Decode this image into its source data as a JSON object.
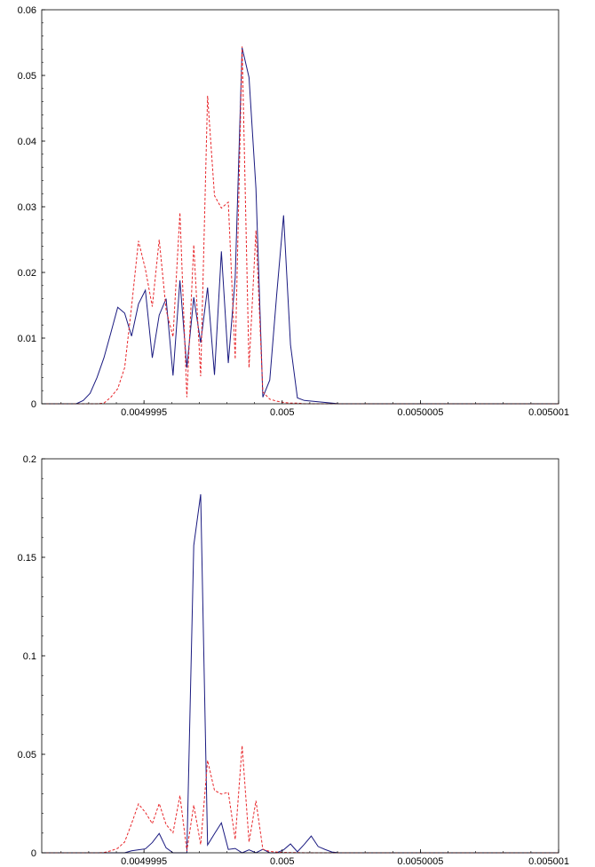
{
  "chart_data": [
    {
      "type": "line",
      "xlim": [
        0.00499913,
        0.005001
      ],
      "ylim": [
        0,
        0.06
      ],
      "xticks": [
        "0.0049995",
        "0.005",
        "0.0050005",
        "0.005001"
      ],
      "xtick_values": [
        0.0049995,
        0.005,
        0.0050005,
        0.005001
      ],
      "yticks": [
        "0",
        "0.01",
        "0.02",
        "0.03",
        "0.04",
        "0.05",
        "0.06"
      ],
      "ytick_values": [
        0,
        0.01,
        0.02,
        0.03,
        0.04,
        0.05,
        0.06
      ],
      "grid": false,
      "series": [
        {
          "color": "#1a1a80",
          "dash": "solid",
          "x": [
            0.00499913,
            0.004999155,
            0.00499918,
            0.004999205,
            0.00499923,
            0.004999255,
            0.00499928,
            0.004999305,
            0.00499933,
            0.004999355,
            0.00499938,
            0.004999405,
            0.00499943,
            0.004999455,
            0.00499948,
            0.004999505,
            0.00499953,
            0.004999555,
            0.00499958,
            0.004999605,
            0.00499963,
            0.004999655,
            0.00499968,
            0.004999705,
            0.00499973,
            0.004999755,
            0.00499978,
            0.004999805,
            0.00499983,
            0.004999855,
            0.00499988,
            0.004999905,
            0.00499993,
            0.004999955,
            0.00499998,
            0.005000005,
            0.00500003,
            0.005000055,
            0.00500008,
            0.005000105,
            0.00500013,
            0.005000155,
            0.00500018,
            0.005000205,
            0.00500023,
            0.005000255,
            0.00500028,
            0.005000305,
            0.00500033,
            0.005000355,
            0.00500038,
            0.005000405,
            0.00500043,
            0.005000455,
            0.00500048,
            0.005000505,
            0.00500053,
            0.005000555,
            0.00500058,
            0.005000605,
            0.00500063,
            0.005000655,
            0.00500068,
            0.005000705,
            0.00500073,
            0.005000755,
            0.00500078,
            0.005000805,
            0.00500083,
            0.005000855,
            0.00500088,
            0.005000905,
            0.00500093,
            0.005000955,
            0.00500098,
            0.005001
          ],
          "y": [
            0,
            0,
            0,
            0,
            0,
            0,
            0.0005,
            0.0016,
            0.004,
            0.007,
            0.0108,
            0.0147,
            0.0138,
            0.0103,
            0.0152,
            0.0173,
            0.007,
            0.0135,
            0.016,
            0.0043,
            0.0188,
            0.0055,
            0.0162,
            0.0093,
            0.0177,
            0.0044,
            0.0232,
            0.0062,
            0.0192,
            0.0542,
            0.0497,
            0.0328,
            0.001,
            0.0036,
            0.0166,
            0.0287,
            0.009,
            0.0009,
            0.0005,
            0.0004,
            0.0003,
            0.0002,
            0.0001,
            0,
            0,
            0,
            0,
            0,
            0,
            0,
            0,
            0,
            0,
            0,
            0,
            0,
            0,
            0,
            0,
            0,
            0,
            0,
            0,
            0,
            0,
            0,
            0,
            0,
            0,
            0,
            0,
            0,
            0,
            0,
            0,
            0
          ]
        },
        {
          "color": "#e8262a",
          "dash": "dashed",
          "x": [
            0.00499913,
            0.004999155,
            0.00499918,
            0.004999205,
            0.00499923,
            0.004999255,
            0.00499928,
            0.004999305,
            0.00499933,
            0.004999355,
            0.00499938,
            0.004999405,
            0.00499943,
            0.004999455,
            0.00499948,
            0.004999505,
            0.00499953,
            0.004999555,
            0.00499958,
            0.004999605,
            0.00499963,
            0.004999655,
            0.00499968,
            0.004999705,
            0.00499973,
            0.004999755,
            0.00499978,
            0.004999805,
            0.00499983,
            0.004999855,
            0.00499988,
            0.004999905,
            0.00499993,
            0.004999955,
            0.00499998,
            0.005000005,
            0.00500003,
            0.005000055,
            0.00500008,
            0.005000105,
            0.00500013,
            0.005000155,
            0.00500018,
            0.005000205,
            0.00500023,
            0.005000255,
            0.00500028,
            0.005000305,
            0.00500033,
            0.005000355,
            0.00500038,
            0.005000405,
            0.00500043,
            0.005000455,
            0.00500048,
            0.005000505,
            0.00500053,
            0.005000555,
            0.00500058,
            0.005000605,
            0.00500063,
            0.005000655,
            0.00500068,
            0.005000705,
            0.00500073,
            0.005000755,
            0.00500078,
            0.005000805,
            0.00500083,
            0.005000855,
            0.00500088,
            0.005000905,
            0.00500093,
            0.005000955,
            0.00500098,
            0.005001
          ],
          "y": [
            0,
            0,
            0,
            0,
            0,
            0,
            0,
            0,
            0,
            0.0001,
            0.001,
            0.0023,
            0.0055,
            0.0148,
            0.0248,
            0.0205,
            0.0148,
            0.025,
            0.0143,
            0.0102,
            0.0291,
            0.001,
            0.0242,
            0.0042,
            0.0469,
            0.0317,
            0.0298,
            0.0307,
            0.0068,
            0.0544,
            0.0055,
            0.0264,
            0.0018,
            0.0007,
            0.0004,
            0.0002,
            0.0001,
            0.0001,
            0,
            0,
            0,
            0,
            0,
            0,
            0,
            0,
            0,
            0,
            0,
            0,
            0,
            0,
            0,
            0,
            0,
            0,
            0,
            0,
            0,
            0,
            0,
            0,
            0,
            0,
            0,
            0,
            0,
            0,
            0,
            0,
            0,
            0,
            0,
            0,
            0,
            0
          ]
        }
      ]
    },
    {
      "type": "line",
      "xlim": [
        0.00499913,
        0.005001
      ],
      "ylim": [
        0,
        0.2
      ],
      "xticks": [
        "0.0049995",
        "0.005",
        "0.0050005",
        "0.005001"
      ],
      "xtick_values": [
        0.0049995,
        0.005,
        0.0050005,
        0.005001
      ],
      "yticks": [
        "0",
        "0.05",
        "0.1",
        "0.15",
        "0.2"
      ],
      "ytick_values": [
        0,
        0.05,
        0.1,
        0.15,
        0.2
      ],
      "grid": false,
      "series": [
        {
          "color": "#1a1a80",
          "dash": "solid",
          "x": [
            0.00499913,
            0.004999155,
            0.00499918,
            0.004999205,
            0.00499923,
            0.004999255,
            0.00499928,
            0.004999305,
            0.00499933,
            0.004999355,
            0.00499938,
            0.004999405,
            0.00499943,
            0.004999455,
            0.00499948,
            0.004999505,
            0.00499953,
            0.004999555,
            0.00499958,
            0.004999605,
            0.00499963,
            0.004999655,
            0.00499968,
            0.004999705,
            0.00499973,
            0.004999755,
            0.00499978,
            0.004999805,
            0.00499983,
            0.004999855,
            0.00499988,
            0.004999905,
            0.00499993,
            0.004999955,
            0.00499998,
            0.005000005,
            0.00500003,
            0.005000055,
            0.00500008,
            0.005000105,
            0.00500013,
            0.005000155,
            0.00500018,
            0.005000205,
            0.00500023,
            0.005000255,
            0.00500028,
            0.005000305,
            0.00500033,
            0.005000355,
            0.00500038,
            0.005000405,
            0.00500043,
            0.005000455,
            0.00500048,
            0.005000505,
            0.00500053,
            0.005000555,
            0.00500058,
            0.005000605,
            0.00500063,
            0.005000655,
            0.00500068,
            0.005000705,
            0.00500073,
            0.005000755,
            0.00500078,
            0.005000805,
            0.00500083,
            0.005000855,
            0.00500088,
            0.005000905,
            0.00500093,
            0.005000955,
            0.00500098,
            0.005001
          ],
          "y": [
            0,
            0,
            0,
            0,
            0,
            0,
            0,
            0,
            0,
            0,
            0,
            0,
            0,
            0.001,
            0.0015,
            0.002,
            0.0052,
            0.0098,
            0.0025,
            0,
            0,
            0,
            0.156,
            0.182,
            0.004,
            0.0097,
            0.0152,
            0.0017,
            0.0022,
            0,
            0.0015,
            0,
            0.0018,
            0,
            0,
            0.0015,
            0.0045,
            0.0005,
            0.0043,
            0.0085,
            0.0032,
            0.0017,
            0.0004,
            0,
            0,
            0,
            0,
            0,
            0,
            0,
            0,
            0,
            0,
            0,
            0,
            0,
            0,
            0,
            0,
            0,
            0,
            0,
            0,
            0,
            0,
            0,
            0,
            0,
            0,
            0,
            0,
            0,
            0,
            0,
            0,
            0
          ]
        },
        {
          "color": "#e8262a",
          "dash": "dashed",
          "x": [
            0.00499913,
            0.004999155,
            0.00499918,
            0.004999205,
            0.00499923,
            0.004999255,
            0.00499928,
            0.004999305,
            0.00499933,
            0.004999355,
            0.00499938,
            0.004999405,
            0.00499943,
            0.004999455,
            0.00499948,
            0.004999505,
            0.00499953,
            0.004999555,
            0.00499958,
            0.004999605,
            0.00499963,
            0.004999655,
            0.00499968,
            0.004999705,
            0.00499973,
            0.004999755,
            0.00499978,
            0.004999805,
            0.00499983,
            0.004999855,
            0.00499988,
            0.004999905,
            0.00499993,
            0.004999955,
            0.00499998,
            0.005000005,
            0.00500003,
            0.005000055,
            0.00500008,
            0.005000105,
            0.00500013,
            0.005000155,
            0.00500018,
            0.005000205,
            0.00500023,
            0.005000255,
            0.00500028,
            0.005000305,
            0.00500033,
            0.005000355,
            0.00500038,
            0.005000405,
            0.00500043,
            0.005000455,
            0.00500048,
            0.005000505,
            0.00500053,
            0.005000555,
            0.00500058,
            0.005000605,
            0.00500063,
            0.005000655,
            0.00500068,
            0.005000705,
            0.00500073,
            0.005000755,
            0.00500078,
            0.005000805,
            0.00500083,
            0.005000855,
            0.00500088,
            0.005000905,
            0.00500093,
            0.005000955,
            0.00500098,
            0.005001
          ],
          "y": [
            0,
            0,
            0,
            0,
            0,
            0,
            0,
            0,
            0,
            0.0001,
            0.001,
            0.0023,
            0.0055,
            0.0148,
            0.0248,
            0.0205,
            0.0148,
            0.025,
            0.0143,
            0.0102,
            0.0291,
            0.001,
            0.0242,
            0.0042,
            0.0469,
            0.0317,
            0.0298,
            0.0307,
            0.0068,
            0.0544,
            0.0055,
            0.0264,
            0.0018,
            0.0007,
            0.0004,
            0.0002,
            0.0001,
            0.0001,
            0,
            0,
            0,
            0,
            0,
            0,
            0,
            0,
            0,
            0,
            0,
            0,
            0,
            0,
            0,
            0,
            0,
            0,
            0,
            0,
            0,
            0,
            0,
            0,
            0,
            0,
            0,
            0,
            0,
            0,
            0,
            0,
            0,
            0,
            0,
            0,
            0,
            0
          ]
        }
      ]
    }
  ]
}
